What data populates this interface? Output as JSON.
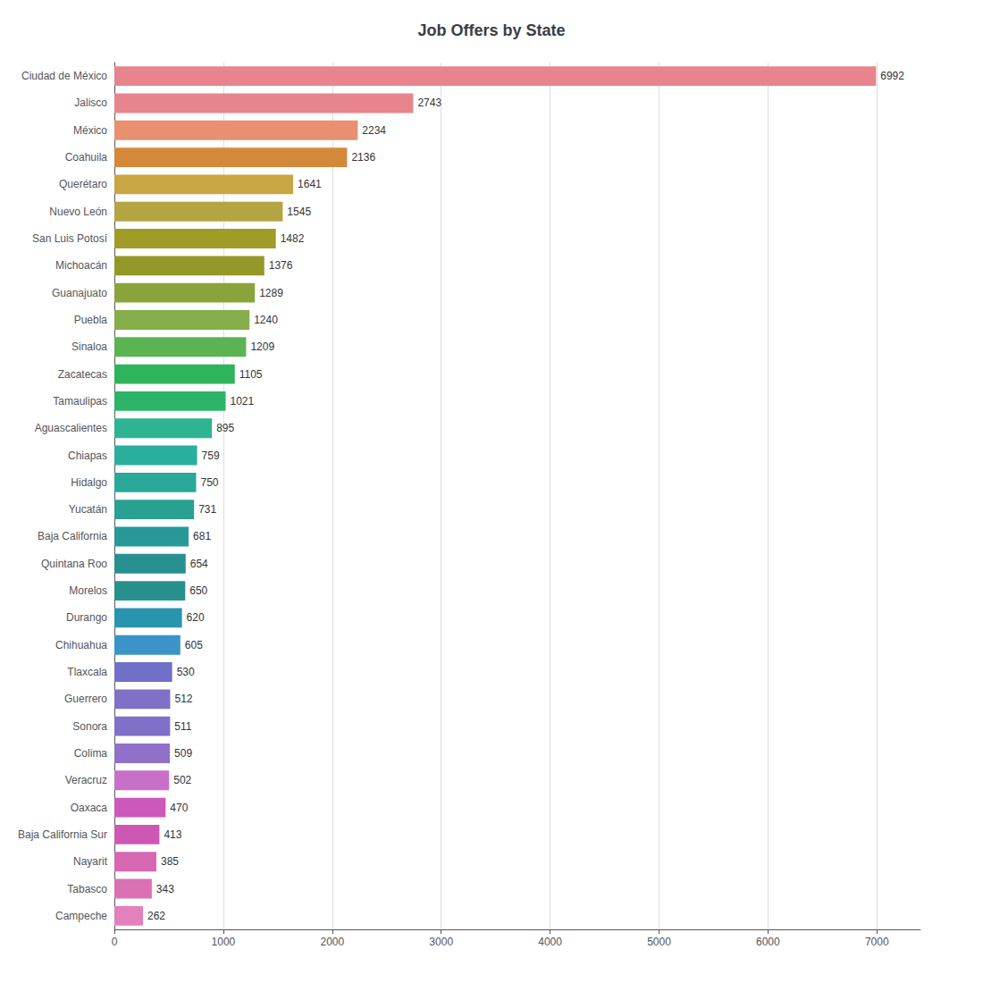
{
  "chart_data": {
    "type": "bar",
    "orientation": "horizontal",
    "title": "Job Offers by State",
    "categories": [
      "Ciudad de México",
      "Jalisco",
      "México",
      "Coahuila",
      "Querétaro",
      "Nuevo León",
      "San Luis Potosí",
      "Michoacán",
      "Guanajuato",
      "Puebla",
      "Sinaloa",
      "Zacatecas",
      "Tamaulipas",
      "Aguascalientes",
      "Chiapas",
      "Hidalgo",
      "Yucatán",
      "Baja California",
      "Quintana Roo",
      "Morelos",
      "Durango",
      "Chihuahua",
      "Tlaxcala",
      "Guerrero",
      "Sonora",
      "Colima",
      "Veracruz",
      "Oaxaca",
      "Baja California Sur",
      "Nayarit",
      "Tabasco",
      "Campeche"
    ],
    "values": [
      6992,
      2743,
      2234,
      2136,
      1641,
      1545,
      1482,
      1376,
      1289,
      1240,
      1209,
      1105,
      1021,
      895,
      759,
      750,
      731,
      681,
      654,
      650,
      620,
      605,
      530,
      512,
      511,
      509,
      502,
      470,
      413,
      385,
      343,
      262
    ],
    "colors": [
      "#e8848c",
      "#e8848c",
      "#e89070",
      "#d4893a",
      "#c8a642",
      "#b4a442",
      "#a09c28",
      "#949828",
      "#8aa43c",
      "#85ae4a",
      "#5ab452",
      "#2eb45a",
      "#2cb468",
      "#2eb490",
      "#2aae9e",
      "#2aa898",
      "#28a092",
      "#289898",
      "#289090",
      "#28908c",
      "#2895ae",
      "#3a94c8",
      "#7070c8",
      "#8070c8",
      "#8070c8",
      "#9070c8",
      "#c870c8",
      "#cc58bc",
      "#cc58b4",
      "#d668b2",
      "#dc70b4",
      "#e480bc"
    ],
    "xlim": [
      0,
      7400
    ],
    "xticks": [
      0,
      1000,
      2000,
      3000,
      4000,
      5000,
      6000,
      7000
    ],
    "grid": true,
    "data_labels": true
  }
}
